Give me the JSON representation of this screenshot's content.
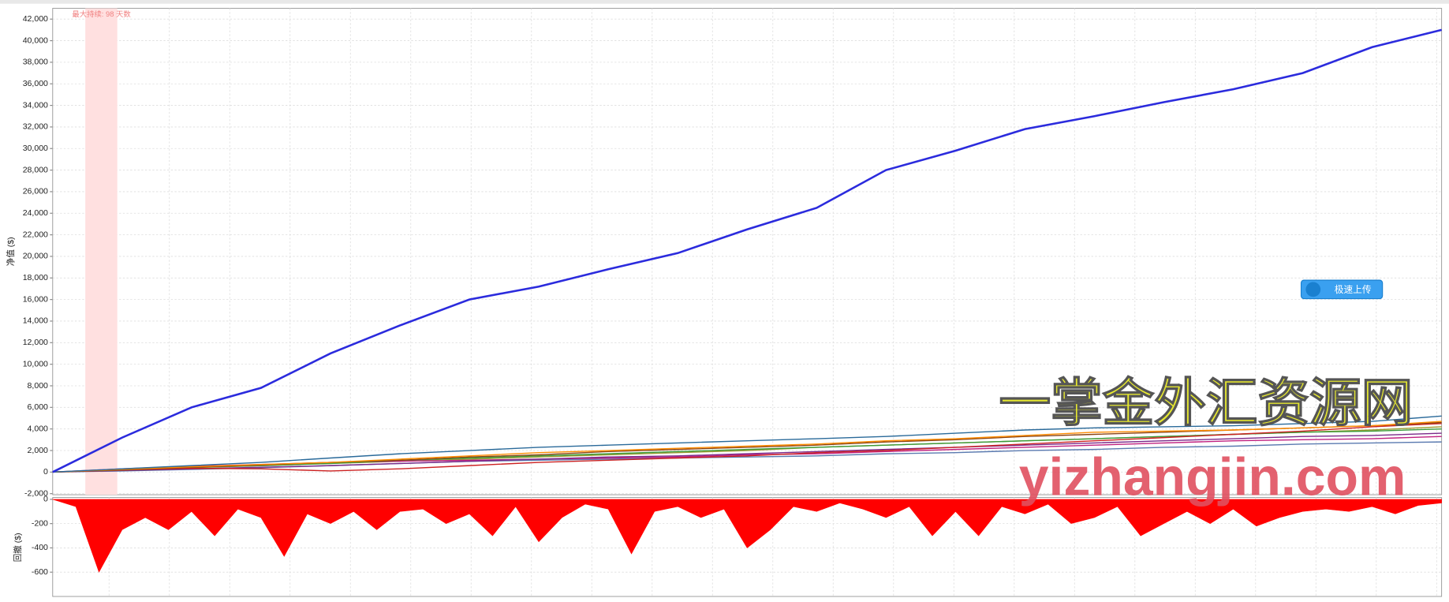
{
  "chart_data": [
    {
      "type": "line",
      "ylabel": "净值 ($)",
      "annotation": "最大持续: 98 天数",
      "shade": [
        0.47,
        0.93
      ],
      "shade_color": "#ffe0e0",
      "categories": [
        null,
        null,
        null,
        null,
        null,
        null,
        null,
        null,
        null,
        null,
        null,
        null,
        null,
        null,
        null,
        null,
        null,
        null,
        null,
        null,
        null
      ],
      "ylim": [
        -2100,
        43000
      ],
      "grid": true,
      "yticks": [
        {
          "value": -2000,
          "label": "-2,000"
        },
        0,
        {
          "value": 2000,
          "label": "2,000"
        },
        {
          "value": 4000,
          "label": "4,000"
        },
        {
          "value": 6000,
          "label": "6,000"
        },
        {
          "value": 8000,
          "label": "8,000"
        },
        {
          "value": 10000,
          "label": "10,000"
        },
        {
          "value": 12000,
          "label": "12,000"
        },
        {
          "value": 14000,
          "label": "14,000"
        },
        {
          "value": 16000,
          "label": "16,000"
        },
        {
          "value": 18000,
          "label": "18,000"
        },
        {
          "value": 20000,
          "label": "20,000"
        },
        {
          "value": 22000,
          "label": "22,000"
        },
        {
          "value": 24000,
          "label": "24,000"
        },
        {
          "value": 26000,
          "label": "26,000"
        },
        {
          "value": 28000,
          "label": "28,000"
        },
        {
          "value": 30000,
          "label": "30,000"
        },
        {
          "value": 32000,
          "label": "32,000"
        },
        {
          "value": 34000,
          "label": "34,000"
        },
        {
          "value": 36000,
          "label": "36,000"
        },
        {
          "value": 38000,
          "label": "38,000"
        },
        {
          "value": 40000,
          "label": "40,000"
        },
        {
          "value": 42000,
          "label": "42,000"
        }
      ],
      "series": [
        {
          "color": "#2b2bdd",
          "values": [
            0,
            3200,
            6000,
            7800,
            11000,
            13600,
            16000,
            17200,
            18800,
            20300,
            22500,
            24500,
            28000,
            29800,
            31800,
            33000,
            34300,
            35500,
            37000,
            39400,
            41000
          ]
        },
        {
          "color": "#2a6a9a",
          "values": [
            0,
            300,
            600,
            900,
            1300,
            1700,
            2000,
            2300,
            2500,
            2700,
            2900,
            3100,
            3300,
            3600,
            3900,
            4100,
            4200,
            4300,
            4500,
            4700,
            5200
          ]
        },
        {
          "color": "#ff8c00",
          "values": [
            0,
            250,
            500,
            700,
            900,
            1200,
            1500,
            1800,
            2000,
            2200,
            2400,
            2600,
            2900,
            3100,
            3400,
            3700,
            3800,
            3900,
            4100,
            4300,
            4700
          ]
        },
        {
          "color": "#8b4513",
          "values": [
            0,
            200,
            450,
            650,
            900,
            1100,
            1400,
            1600,
            1900,
            2100,
            2300,
            2500,
            2800,
            3000,
            3300,
            3500,
            3700,
            3900,
            4100,
            4300,
            4600
          ]
        },
        {
          "color": "#cc2222",
          "values": [
            0,
            200,
            350,
            300,
            100,
            300,
            600,
            900,
            1100,
            1300,
            1500,
            1800,
            2000,
            2300,
            2600,
            2900,
            3200,
            3500,
            3800,
            4200,
            4500
          ]
        },
        {
          "color": "#3a9a3a",
          "values": [
            0,
            250,
            450,
            600,
            800,
            1100,
            1300,
            1500,
            1700,
            1900,
            2100,
            2300,
            2500,
            2700,
            2900,
            3100,
            3300,
            3500,
            3700,
            3800,
            4000
          ]
        },
        {
          "color": "#7b2a8a",
          "values": [
            0,
            150,
            300,
            450,
            600,
            800,
            1000,
            1200,
            1400,
            1500,
            1700,
            1900,
            2100,
            2300,
            2500,
            2700,
            2900,
            3100,
            3300,
            3400,
            3600
          ]
        },
        {
          "color": "#c02080",
          "values": [
            0,
            300,
            550,
            700,
            900,
            1000,
            1100,
            1200,
            1300,
            1400,
            1600,
            1700,
            1900,
            2100,
            2300,
            2500,
            2700,
            2900,
            3000,
            3100,
            3300
          ]
        },
        {
          "color": "#5a7ab0",
          "values": [
            0,
            100,
            250,
            400,
            600,
            800,
            1000,
            1100,
            1200,
            1300,
            1400,
            1500,
            1700,
            1800,
            2000,
            2100,
            2300,
            2400,
            2600,
            2700,
            2800
          ]
        },
        {
          "color": "#9a9a30",
          "values": [
            0,
            200,
            400,
            600,
            800,
            1000,
            1200,
            1400,
            1600,
            1800,
            2000,
            2300,
            2500,
            2700,
            2900,
            3100,
            3300,
            3500,
            3700,
            3900,
            4200
          ]
        }
      ]
    },
    {
      "type": "area",
      "ylabel": "回撤 ($)",
      "color": "#ff0000",
      "categories": [
        null,
        null,
        null,
        null,
        null,
        null,
        null,
        null,
        null,
        null,
        null,
        null,
        null,
        null,
        null,
        null,
        null,
        null,
        null,
        null,
        null,
        null,
        null,
        null,
        null,
        null,
        null,
        null,
        null,
        null,
        null,
        null,
        null,
        null,
        null,
        null,
        null,
        null,
        null,
        null,
        null,
        null,
        null,
        null,
        null,
        null,
        null,
        null,
        null,
        null,
        null,
        null,
        null,
        null,
        null,
        null,
        null,
        null,
        null,
        null,
        null
      ],
      "ylim": [
        -800,
        15
      ],
      "grid": true,
      "yticks": [
        0,
        -200,
        -400,
        -600
      ],
      "values": [
        0,
        -60,
        -600,
        -250,
        -150,
        -250,
        -100,
        -300,
        -80,
        -150,
        -470,
        -120,
        -200,
        -100,
        -250,
        -100,
        -80,
        -200,
        -120,
        -300,
        -60,
        -350,
        -150,
        -40,
        -80,
        -450,
        -100,
        -60,
        -150,
        -80,
        -400,
        -250,
        -60,
        -100,
        -30,
        -80,
        -150,
        -60,
        -300,
        -100,
        -300,
        -60,
        -120,
        -40,
        -200,
        -150,
        -60,
        -300,
        -200,
        -100,
        -200,
        -80,
        -220,
        -150,
        -100,
        -80,
        -100,
        -60,
        -120,
        -50,
        -30
      ]
    }
  ],
  "button": "极速上传",
  "watermark": [
    "一掌金外汇资源网",
    "yizhangjin.com"
  ]
}
